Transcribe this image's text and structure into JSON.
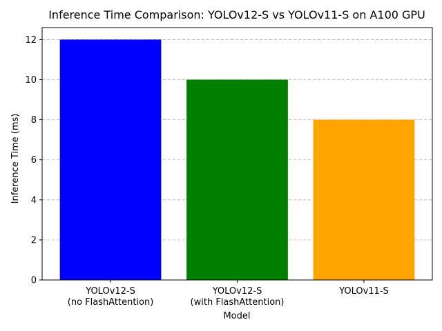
{
  "chart_data": {
    "type": "bar",
    "title": "Inference Time Comparison: YOLOv12-S vs YOLOv11-S on A100 GPU",
    "xlabel": "Model",
    "ylabel": "Inference Time (ms)",
    "categories": [
      [
        "YOLOv12-S",
        "(no FlashAttention)"
      ],
      [
        "YOLOv12-S",
        "(with FlashAttention)"
      ],
      [
        "YOLOv11-S"
      ]
    ],
    "values": [
      12,
      10,
      8
    ],
    "colors": [
      "#0000ff",
      "#008000",
      "#ffa500"
    ],
    "ylim": [
      0,
      12.6
    ],
    "yticks": [
      0,
      2,
      4,
      6,
      8,
      10,
      12
    ],
    "grid": "y-dashed",
    "legend": "none"
  }
}
